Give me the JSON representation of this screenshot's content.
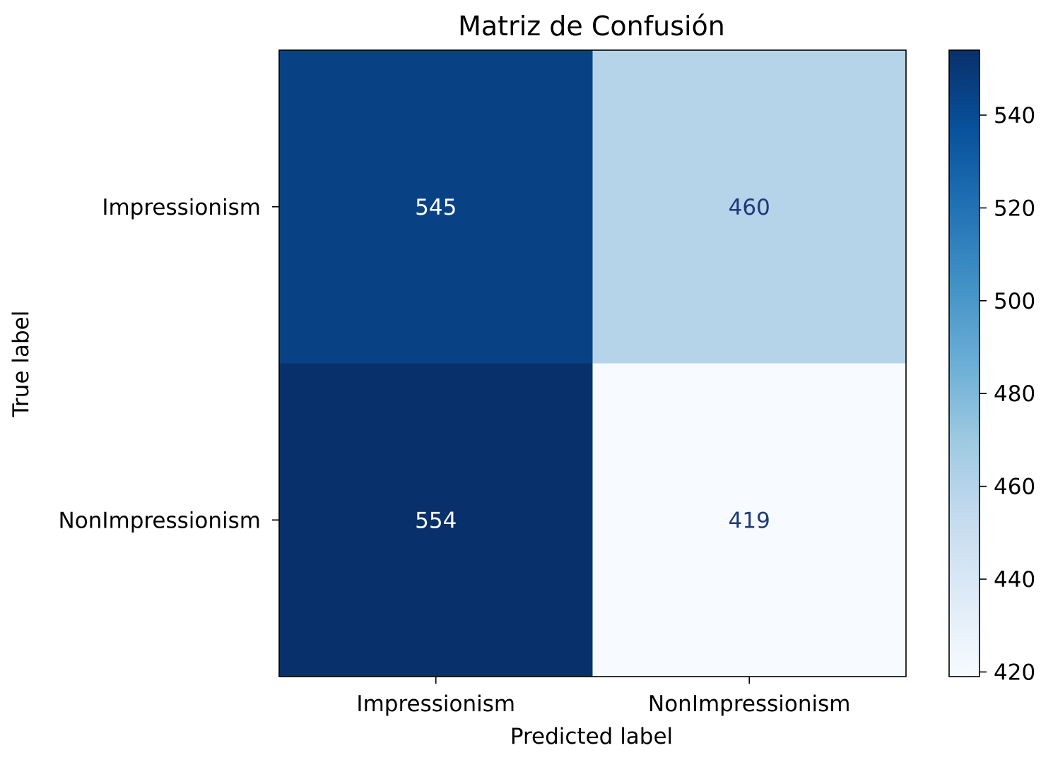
{
  "chart_data": {
    "type": "heatmap",
    "title": "Matriz de Confusión",
    "xlabel": "Predicted label",
    "ylabel": "True label",
    "x_categories": [
      "Impressionism",
      "NonImpressionism"
    ],
    "y_categories": [
      "Impressionism",
      "NonImpressionism"
    ],
    "values": [
      [
        545,
        460
      ],
      [
        554,
        419
      ]
    ],
    "colormap": "Blues",
    "color_range": [
      419,
      554
    ],
    "colorbar_ticks": [
      420,
      440,
      460,
      480,
      500,
      520,
      540
    ],
    "grid": false,
    "colors": {
      "light_text": "#ffffff",
      "dark_text": "#1f3a7a",
      "axis": "#000000"
    }
  }
}
